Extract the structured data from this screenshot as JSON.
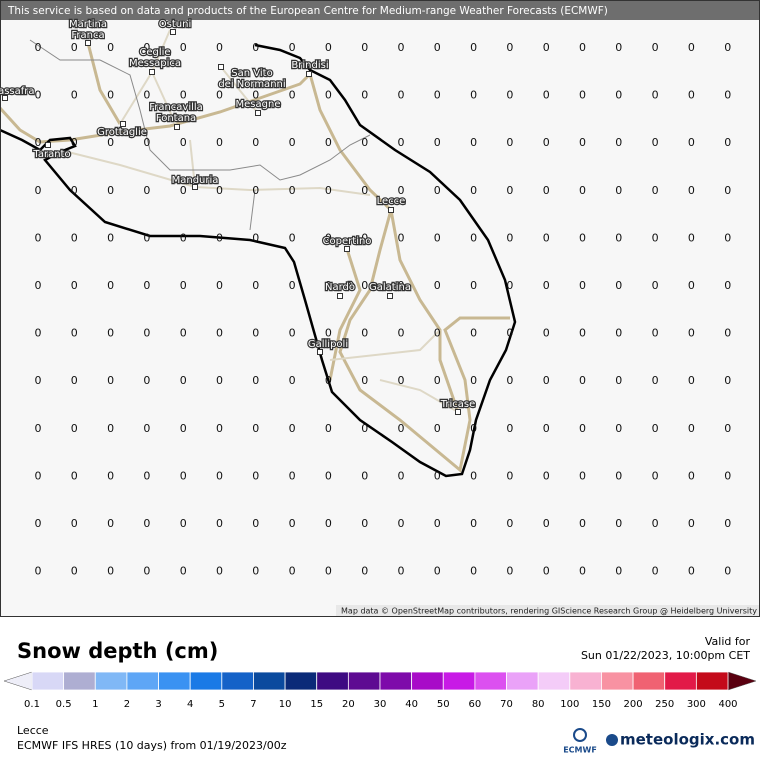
{
  "banner": "This service is based on data and products of the European Centre for Medium-range Weather Forecasts (ECMWF)",
  "map": {
    "cities": [
      [
        "Martina",
        "Franca"
      ],
      [
        "Ostuni"
      ],
      [
        "Ceglie",
        "Messapica"
      ],
      [
        "San Vito",
        "dei Normanni"
      ],
      [
        "Brindisi"
      ],
      [
        "Massafra"
      ],
      [
        "Grottaglie"
      ],
      [
        "Francavilla",
        "Fontana"
      ],
      [
        "Mesagne"
      ],
      [
        "Taranto"
      ],
      [
        "Manduria"
      ],
      [
        "Lecce"
      ],
      [
        "Copertino"
      ],
      [
        "Nardò"
      ],
      [
        "Galatina"
      ],
      [
        "Gallipoli"
      ],
      [
        "Tricase"
      ]
    ],
    "grid": [
      [
        0,
        0,
        0,
        0,
        0,
        0,
        0,
        0,
        0,
        0,
        0,
        0,
        0,
        0,
        0,
        0,
        0,
        0,
        0,
        0
      ],
      [
        0,
        0,
        0,
        0,
        0,
        0,
        0,
        0,
        0,
        0,
        0,
        0,
        0,
        0,
        0,
        0,
        0,
        0,
        0,
        0
      ],
      [
        0,
        0,
        0,
        0,
        0,
        0,
        0,
        0,
        0,
        0,
        0,
        0,
        0,
        0,
        0,
        0,
        0,
        0,
        0,
        0
      ],
      [
        0,
        0,
        0,
        0,
        0,
        0,
        0,
        0,
        0,
        0,
        0,
        0,
        0,
        0,
        0,
        0,
        0,
        0,
        0,
        0
      ],
      [
        0,
        0,
        0,
        0,
        0,
        0,
        0,
        0,
        0,
        0,
        0,
        0,
        0,
        0,
        0,
        0,
        0,
        0,
        0,
        0
      ],
      [
        0,
        0,
        0,
        0,
        0,
        0,
        0,
        0,
        0,
        0,
        0,
        0,
        0,
        0,
        0,
        0,
        0,
        0,
        0,
        0
      ],
      [
        0,
        0,
        0,
        0,
        0,
        0,
        0,
        0,
        0,
        0,
        0,
        0,
        0,
        0,
        0,
        0,
        0,
        0,
        0,
        0
      ],
      [
        0,
        0,
        0,
        0,
        0,
        0,
        0,
        0,
        0,
        0,
        0,
        0,
        0,
        0,
        0,
        0,
        0,
        0,
        0,
        0
      ],
      [
        0,
        0,
        0,
        0,
        0,
        0,
        0,
        0,
        0,
        0,
        0,
        0,
        0,
        0,
        0,
        0,
        0,
        0,
        0,
        0
      ],
      [
        0,
        0,
        0,
        0,
        0,
        0,
        0,
        0,
        0,
        0,
        0,
        0,
        0,
        0,
        0,
        0,
        0,
        0,
        0,
        0
      ],
      [
        0,
        0,
        0,
        0,
        0,
        0,
        0,
        0,
        0,
        0,
        0,
        0,
        0,
        0,
        0,
        0,
        0,
        0,
        0,
        0
      ],
      [
        0,
        0,
        0,
        0,
        0,
        0,
        0,
        0,
        0,
        0,
        0,
        0,
        0,
        0,
        0,
        0,
        0,
        0,
        0,
        0
      ]
    ],
    "attribution": "Map data © OpenStreetMap contributors, rendering GIScience Research Group @ Heidelberg University"
  },
  "legend": {
    "title": "Snow depth (cm)",
    "valid_label": "Valid for",
    "valid_time": "Sun 01/22/2023, 10:00pm CET",
    "labels": [
      0.1,
      0.5,
      1,
      2,
      3,
      4,
      5,
      7,
      10,
      15,
      20,
      30,
      40,
      50,
      60,
      70,
      80,
      100,
      150,
      200,
      250,
      300,
      400
    ],
    "colors": [
      "#d8d8f6",
      "#aeaed2",
      "#80b8f6",
      "#5ea6f6",
      "#3a92f2",
      "#1a7ae6",
      "#1462c8",
      "#0a4a9e",
      "#0a2a78",
      "#3e0a82",
      "#5e0a92",
      "#7e0aaa",
      "#a80ac8",
      "#c81ae6",
      "#dc50f0",
      "#eaa2f8",
      "#f4ccf8",
      "#f8b2d2",
      "#f892a2",
      "#f06272",
      "#e21a48",
      "#c40a1a",
      "#9e0010"
    ],
    "under_color": "#eeeef8",
    "over_color": "#5a0010"
  },
  "footer": {
    "location": "Lecce",
    "model": "ECMWF IFS HRES (10 days) from 01/19/2023/00z",
    "ecmwf": "ECMWF",
    "brand": "meteologix.com"
  }
}
